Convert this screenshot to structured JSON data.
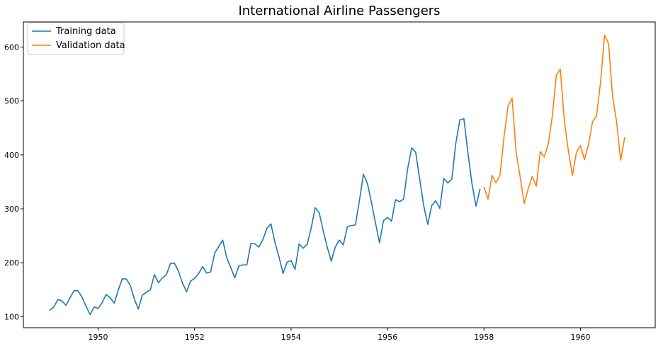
{
  "chart_data": {
    "type": "line",
    "title": "International Airline Passengers",
    "xlabel": "",
    "ylabel": "",
    "xlim": [
      1948.45,
      1961.55
    ],
    "ylim": [
      79.5,
      646.5
    ],
    "x_ticks": [
      1950,
      1952,
      1954,
      1956,
      1958,
      1960
    ],
    "x_tick_labels": [
      "1950",
      "1952",
      "1954",
      "1956",
      "1958",
      "1960"
    ],
    "y_ticks": [
      100,
      200,
      300,
      400,
      500,
      600
    ],
    "y_tick_labels": [
      "100",
      "200",
      "300",
      "400",
      "500",
      "600"
    ],
    "grid": false,
    "legend_position": "top-left",
    "series": [
      {
        "name": "Training data",
        "color": "#1f77b4",
        "x_start": 1949.0,
        "x_step": 0.0833333,
        "values": [
          112,
          118,
          132,
          129,
          121,
          135,
          148,
          148,
          136,
          119,
          104,
          118,
          115,
          126,
          141,
          135,
          125,
          149,
          170,
          170,
          158,
          133,
          114,
          140,
          145,
          150,
          178,
          163,
          172,
          178,
          199,
          199,
          184,
          162,
          146,
          166,
          171,
          180,
          193,
          181,
          183,
          218,
          230,
          242,
          209,
          191,
          172,
          194,
          196,
          196,
          236,
          235,
          229,
          243,
          264,
          272,
          237,
          211,
          180,
          201,
          204,
          188,
          235,
          227,
          234,
          264,
          302,
          293,
          259,
          229,
          203,
          229,
          242,
          233,
          267,
          269,
          270,
          315,
          364,
          347,
          312,
          274,
          237,
          278,
          284,
          277,
          317,
          313,
          318,
          374,
          413,
          405,
          355,
          306,
          271,
          306,
          315,
          301,
          356,
          348,
          355,
          422,
          465,
          467,
          404,
          347,
          305,
          336
        ]
      },
      {
        "name": "Validation data",
        "color": "#ff7f0e",
        "x_start": 1958.0,
        "x_step": 0.0833333,
        "values": [
          340,
          318,
          362,
          348,
          363,
          435,
          491,
          505,
          404,
          359,
          310,
          337,
          360,
          342,
          406,
          396,
          420,
          472,
          548,
          559,
          463,
          407,
          362,
          405,
          417,
          391,
          419,
          461,
          472,
          535,
          622,
          606,
          508,
          461,
          390,
          432
        ]
      }
    ]
  }
}
